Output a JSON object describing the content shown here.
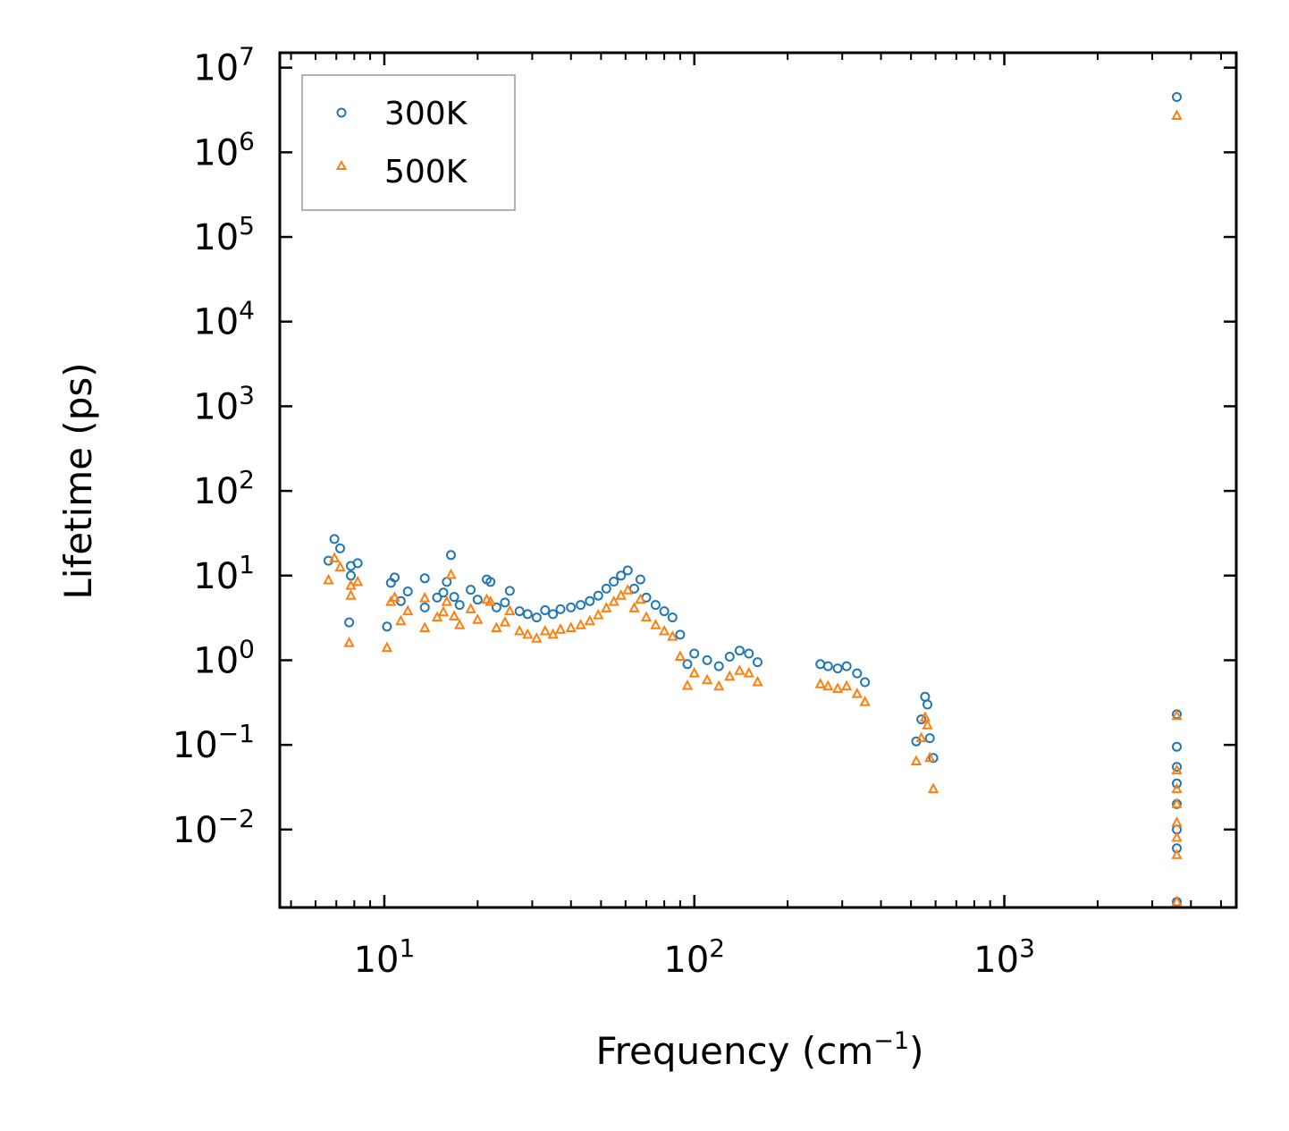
{
  "chart_data": {
    "type": "scatter",
    "xscale": "log",
    "yscale": "log",
    "xlabel": "Frequency (cm",
    "xlabel_sup": "−1",
    "xlabel_end": ")",
    "ylabel": "Lifetime (ps)",
    "xlim": [
      4.6,
      5600
    ],
    "ylim": [
      0.0012,
      15000000
    ],
    "x_ticks": [
      {
        "value": 10,
        "base": "10",
        "exp": "1"
      },
      {
        "value": 100,
        "base": "10",
        "exp": "2"
      },
      {
        "value": 1000,
        "base": "10",
        "exp": "3"
      }
    ],
    "y_ticks": [
      {
        "value": 0.01,
        "base": "10",
        "exp": "−2"
      },
      {
        "value": 0.1,
        "base": "10",
        "exp": "−1"
      },
      {
        "value": 1,
        "base": "10",
        "exp": "0"
      },
      {
        "value": 10,
        "base": "10",
        "exp": "1"
      },
      {
        "value": 100,
        "base": "10",
        "exp": "2"
      },
      {
        "value": 1000,
        "base": "10",
        "exp": "3"
      },
      {
        "value": 10000,
        "base": "10",
        "exp": "4"
      },
      {
        "value": 100000,
        "base": "10",
        "exp": "5"
      },
      {
        "value": 1000000,
        "base": "10",
        "exp": "6"
      },
      {
        "value": 10000000,
        "base": "10",
        "exp": "7"
      }
    ],
    "legend": {
      "position": "top-left"
    },
    "series": [
      {
        "name": "300K",
        "marker": "circle",
        "color": "#1f77b4",
        "points": [
          [
            6.6,
            15
          ],
          [
            6.9,
            27
          ],
          [
            7.2,
            21
          ],
          [
            7.7,
            2.8
          ],
          [
            7.8,
            13
          ],
          [
            7.8,
            10
          ],
          [
            8.2,
            14
          ],
          [
            10.2,
            2.5
          ],
          [
            10.5,
            8.2
          ],
          [
            10.8,
            9.5
          ],
          [
            11.3,
            5.0
          ],
          [
            11.9,
            6.5
          ],
          [
            13.5,
            9.3
          ],
          [
            13.5,
            4.2
          ],
          [
            14.8,
            5.5
          ],
          [
            15.5,
            6.3
          ],
          [
            15.9,
            8.4
          ],
          [
            16.4,
            17.5
          ],
          [
            16.8,
            5.6
          ],
          [
            17.5,
            4.5
          ],
          [
            19.0,
            6.8
          ],
          [
            20.0,
            5.2
          ],
          [
            21.4,
            9.0
          ],
          [
            22.0,
            8.4
          ],
          [
            23.0,
            4.2
          ],
          [
            24.5,
            4.8
          ],
          [
            25.4,
            6.6
          ],
          [
            27.3,
            3.8
          ],
          [
            29.0,
            3.5
          ],
          [
            31.0,
            3.2
          ],
          [
            33.0,
            3.9
          ],
          [
            35.0,
            3.5
          ],
          [
            37.0,
            4.0
          ],
          [
            40.0,
            4.2
          ],
          [
            43.0,
            4.5
          ],
          [
            46.0,
            5.0
          ],
          [
            49.0,
            5.8
          ],
          [
            52.0,
            7.0
          ],
          [
            55.0,
            8.5
          ],
          [
            58.0,
            10.0
          ],
          [
            61.0,
            11.5
          ],
          [
            64.0,
            7.0
          ],
          [
            67.0,
            9.0
          ],
          [
            70.0,
            5.5
          ],
          [
            75.0,
            4.5
          ],
          [
            80.0,
            3.8
          ],
          [
            85.0,
            3.2
          ],
          [
            90.0,
            2.0
          ],
          [
            95.0,
            0.9
          ],
          [
            100.0,
            1.2
          ],
          [
            110.0,
            1.0
          ],
          [
            120.0,
            0.85
          ],
          [
            130.0,
            1.1
          ],
          [
            140.0,
            1.3
          ],
          [
            150.0,
            1.2
          ],
          [
            160.0,
            0.95
          ],
          [
            255.0,
            0.9
          ],
          [
            270.0,
            0.85
          ],
          [
            290.0,
            0.8
          ],
          [
            310.0,
            0.85
          ],
          [
            335.0,
            0.7
          ],
          [
            355.0,
            0.55
          ],
          [
            520.0,
            0.11
          ],
          [
            540.0,
            0.2
          ],
          [
            555.0,
            0.37
          ],
          [
            565.0,
            0.3
          ],
          [
            575.0,
            0.12
          ],
          [
            590.0,
            0.07
          ],
          [
            3600.0,
            4500000
          ],
          [
            3600.0,
            0.23
          ],
          [
            3600.0,
            0.095
          ],
          [
            3600.0,
            0.055
          ],
          [
            3600.0,
            0.035
          ],
          [
            3600.0,
            0.02
          ],
          [
            3600.0,
            0.01
          ],
          [
            3600.0,
            0.006
          ],
          [
            3600.0,
            0.0014
          ]
        ]
      },
      {
        "name": "500K",
        "marker": "triangle",
        "color": "#ff7f0e",
        "points": [
          [
            6.6,
            8.8
          ],
          [
            6.9,
            16
          ],
          [
            7.2,
            12.5
          ],
          [
            7.7,
            1.6
          ],
          [
            7.8,
            7.6
          ],
          [
            7.8,
            5.8
          ],
          [
            8.2,
            8.4
          ],
          [
            10.2,
            1.4
          ],
          [
            10.5,
            4.9
          ],
          [
            10.8,
            5.5
          ],
          [
            11.3,
            2.9
          ],
          [
            11.9,
            3.8
          ],
          [
            13.5,
            5.4
          ],
          [
            13.5,
            2.4
          ],
          [
            14.8,
            3.2
          ],
          [
            15.5,
            3.7
          ],
          [
            15.9,
            4.9
          ],
          [
            16.4,
            10.2
          ],
          [
            16.8,
            3.3
          ],
          [
            17.5,
            2.6
          ],
          [
            19.0,
            4.0
          ],
          [
            20.0,
            3.0
          ],
          [
            21.4,
            5.2
          ],
          [
            22.0,
            4.9
          ],
          [
            23.0,
            2.4
          ],
          [
            24.5,
            2.8
          ],
          [
            25.4,
            3.8
          ],
          [
            27.3,
            2.2
          ],
          [
            29.0,
            2.0
          ],
          [
            31.0,
            1.8
          ],
          [
            33.0,
            2.2
          ],
          [
            35.0,
            2.0
          ],
          [
            37.0,
            2.3
          ],
          [
            40.0,
            2.4
          ],
          [
            43.0,
            2.6
          ],
          [
            46.0,
            2.9
          ],
          [
            49.0,
            3.4
          ],
          [
            52.0,
            4.1
          ],
          [
            55.0,
            4.9
          ],
          [
            58.0,
            5.8
          ],
          [
            61.0,
            6.7
          ],
          [
            64.0,
            4.1
          ],
          [
            67.0,
            5.2
          ],
          [
            70.0,
            3.2
          ],
          [
            75.0,
            2.6
          ],
          [
            80.0,
            2.2
          ],
          [
            85.0,
            1.9
          ],
          [
            90.0,
            1.1
          ],
          [
            95.0,
            0.5
          ],
          [
            100.0,
            0.7
          ],
          [
            110.0,
            0.58
          ],
          [
            120.0,
            0.49
          ],
          [
            130.0,
            0.64
          ],
          [
            140.0,
            0.75
          ],
          [
            150.0,
            0.7
          ],
          [
            160.0,
            0.55
          ],
          [
            255.0,
            0.52
          ],
          [
            270.0,
            0.49
          ],
          [
            290.0,
            0.46
          ],
          [
            310.0,
            0.49
          ],
          [
            335.0,
            0.4
          ],
          [
            355.0,
            0.32
          ],
          [
            520.0,
            0.064
          ],
          [
            540.0,
            0.12
          ],
          [
            555.0,
            0.21
          ],
          [
            565.0,
            0.17
          ],
          [
            575.0,
            0.07
          ],
          [
            590.0,
            0.03
          ],
          [
            3600.0,
            2700000
          ],
          [
            3600.0,
            0.22
          ],
          [
            3600.0,
            0.05
          ],
          [
            3600.0,
            0.03
          ],
          [
            3600.0,
            0.02
          ],
          [
            3600.0,
            0.012
          ],
          [
            3600.0,
            0.008
          ],
          [
            3600.0,
            0.005
          ],
          [
            3600.0,
            0.0014
          ]
        ]
      }
    ]
  }
}
